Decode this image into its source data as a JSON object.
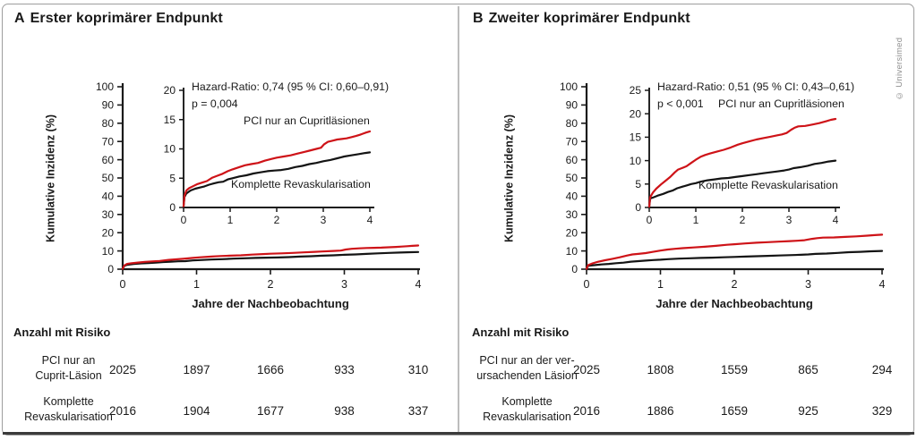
{
  "figure": {
    "watermark": "© Universimed",
    "colors": {
      "red": "#ce1318",
      "black": "#141414",
      "axis": "#1a1a1a",
      "frame": "#9e9e9e",
      "bottom_rule": "#3b3b3b"
    }
  },
  "chart_data": [
    {
      "type": "line",
      "panel_letter": "A",
      "title": "Erster koprimärer Endpunkt",
      "xlabel": "Jahre der Nachbeobachtung",
      "ylabel": "Kumulative Inzidenz (%)",
      "ylim": [
        0,
        100
      ],
      "y_ticks": [
        0,
        10,
        20,
        30,
        40,
        50,
        60,
        70,
        80,
        90,
        100
      ],
      "x_ticks": [
        0,
        1,
        2,
        3,
        4
      ],
      "grid": false,
      "inset": {
        "ylim": [
          0,
          20
        ],
        "y_ticks": [
          0,
          5,
          10,
          15,
          20
        ],
        "x_ticks": [
          0,
          1,
          2,
          3,
          4
        ],
        "hazard_text": "Hazard-Ratio: 0,74 (95 % CI: 0,60–0,91)",
        "p_text": "p = 0,004"
      },
      "series": [
        {
          "name": "PCI nur an Cupritläsionen",
          "color": "#ce1318",
          "points": [
            [
              0,
              0.2
            ],
            [
              0.02,
              2.0
            ],
            [
              0.06,
              2.9
            ],
            [
              0.12,
              3.3
            ],
            [
              0.22,
              3.7
            ],
            [
              0.3,
              4.0
            ],
            [
              0.42,
              4.3
            ],
            [
              0.5,
              4.5
            ],
            [
              0.62,
              5.1
            ],
            [
              0.72,
              5.4
            ],
            [
              0.82,
              5.7
            ],
            [
              0.95,
              6.2
            ],
            [
              1.05,
              6.5
            ],
            [
              1.2,
              6.9
            ],
            [
              1.32,
              7.2
            ],
            [
              1.45,
              7.4
            ],
            [
              1.6,
              7.6
            ],
            [
              1.75,
              8.0
            ],
            [
              1.9,
              8.3
            ],
            [
              2.0,
              8.5
            ],
            [
              2.15,
              8.7
            ],
            [
              2.3,
              8.9
            ],
            [
              2.45,
              9.2
            ],
            [
              2.6,
              9.5
            ],
            [
              2.7,
              9.7
            ],
            [
              2.85,
              10.0
            ],
            [
              2.95,
              10.2
            ],
            [
              3.02,
              10.8
            ],
            [
              3.1,
              11.2
            ],
            [
              3.2,
              11.4
            ],
            [
              3.3,
              11.6
            ],
            [
              3.4,
              11.7
            ],
            [
              3.5,
              11.8
            ],
            [
              3.6,
              12.0
            ],
            [
              3.7,
              12.2
            ],
            [
              3.78,
              12.4
            ],
            [
              3.85,
              12.6
            ],
            [
              3.92,
              12.8
            ],
            [
              4,
              13.0
            ]
          ]
        },
        {
          "name": "Komplette Revaskularisation",
          "color": "#141414",
          "points": [
            [
              0,
              0.2
            ],
            [
              0.02,
              1.8
            ],
            [
              0.06,
              2.4
            ],
            [
              0.15,
              2.9
            ],
            [
              0.25,
              3.2
            ],
            [
              0.35,
              3.4
            ],
            [
              0.45,
              3.6
            ],
            [
              0.55,
              3.9
            ],
            [
              0.65,
              4.1
            ],
            [
              0.75,
              4.3
            ],
            [
              0.85,
              4.4
            ],
            [
              0.95,
              4.8
            ],
            [
              1.05,
              5.0
            ],
            [
              1.2,
              5.3
            ],
            [
              1.35,
              5.5
            ],
            [
              1.5,
              5.8
            ],
            [
              1.65,
              6.0
            ],
            [
              1.8,
              6.2
            ],
            [
              1.95,
              6.3
            ],
            [
              2.1,
              6.4
            ],
            [
              2.25,
              6.6
            ],
            [
              2.4,
              6.9
            ],
            [
              2.55,
              7.1
            ],
            [
              2.7,
              7.4
            ],
            [
              2.85,
              7.6
            ],
            [
              3.0,
              7.9
            ],
            [
              3.15,
              8.1
            ],
            [
              3.3,
              8.4
            ],
            [
              3.45,
              8.7
            ],
            [
              3.6,
              8.9
            ],
            [
              3.75,
              9.1
            ],
            [
              3.9,
              9.3
            ],
            [
              4,
              9.4
            ]
          ]
        }
      ],
      "number_at_risk": {
        "header": "Anzahl mit Risiko",
        "rows": [
          {
            "label": "PCI nur an\nCuprit-Läsion",
            "values": [
              "2025",
              "1897",
              "1666",
              "933",
              "310"
            ]
          },
          {
            "label": "Komplette\nRevaskularisation",
            "values": [
              "2016",
              "1904",
              "1677",
              "938",
              "337"
            ]
          }
        ]
      }
    },
    {
      "type": "line",
      "panel_letter": "B",
      "title": "Zweiter koprimärer Endpunkt",
      "xlabel": "Jahre der Nachbeobachtung",
      "ylabel": "Kumulative Inzidenz (%)",
      "ylim": [
        0,
        100
      ],
      "y_ticks": [
        0,
        10,
        20,
        30,
        40,
        50,
        60,
        70,
        80,
        90,
        100
      ],
      "x_ticks": [
        0,
        1,
        2,
        3,
        4
      ],
      "grid": false,
      "inset": {
        "ylim": [
          0,
          25
        ],
        "y_ticks": [
          0,
          5,
          10,
          15,
          20,
          25
        ],
        "x_ticks": [
          0,
          1,
          2,
          3,
          4
        ],
        "hazard_text": "Hazard-Ratio: 0,51 (95 % CI: 0,43–0,61)",
        "p_text": "p < 0,001"
      },
      "series": [
        {
          "name": "PCI nur an Cupritläsionen",
          "color": "#ce1318",
          "points": [
            [
              0,
              0.2
            ],
            [
              0.02,
              2.2
            ],
            [
              0.08,
              3.2
            ],
            [
              0.15,
              4.0
            ],
            [
              0.25,
              4.9
            ],
            [
              0.35,
              5.7
            ],
            [
              0.45,
              6.5
            ],
            [
              0.55,
              7.5
            ],
            [
              0.62,
              8.1
            ],
            [
              0.7,
              8.4
            ],
            [
              0.8,
              8.8
            ],
            [
              0.9,
              9.5
            ],
            [
              1.0,
              10.2
            ],
            [
              1.1,
              10.8
            ],
            [
              1.2,
              11.2
            ],
            [
              1.3,
              11.5
            ],
            [
              1.45,
              11.9
            ],
            [
              1.6,
              12.3
            ],
            [
              1.75,
              12.8
            ],
            [
              1.9,
              13.4
            ],
            [
              2.0,
              13.7
            ],
            [
              2.15,
              14.1
            ],
            [
              2.3,
              14.5
            ],
            [
              2.45,
              14.8
            ],
            [
              2.6,
              15.1
            ],
            [
              2.75,
              15.4
            ],
            [
              2.85,
              15.6
            ],
            [
              2.95,
              15.9
            ],
            [
              3.05,
              16.6
            ],
            [
              3.12,
              17.0
            ],
            [
              3.2,
              17.3
            ],
            [
              3.35,
              17.4
            ],
            [
              3.5,
              17.7
            ],
            [
              3.65,
              18.0
            ],
            [
              3.8,
              18.4
            ],
            [
              3.9,
              18.7
            ],
            [
              4,
              18.9
            ]
          ]
        },
        {
          "name": "Komplette Revaskularisation",
          "color": "#141414",
          "points": [
            [
              0,
              0.2
            ],
            [
              0.02,
              1.9
            ],
            [
              0.1,
              2.2
            ],
            [
              0.2,
              2.6
            ],
            [
              0.3,
              2.9
            ],
            [
              0.4,
              3.3
            ],
            [
              0.5,
              3.6
            ],
            [
              0.6,
              4.1
            ],
            [
              0.7,
              4.4
            ],
            [
              0.8,
              4.7
            ],
            [
              0.9,
              5.0
            ],
            [
              1.0,
              5.2
            ],
            [
              1.1,
              5.5
            ],
            [
              1.25,
              5.8
            ],
            [
              1.4,
              6.0
            ],
            [
              1.55,
              6.2
            ],
            [
              1.7,
              6.3
            ],
            [
              1.85,
              6.5
            ],
            [
              2.0,
              6.7
            ],
            [
              2.15,
              6.9
            ],
            [
              2.3,
              7.1
            ],
            [
              2.45,
              7.3
            ],
            [
              2.6,
              7.5
            ],
            [
              2.75,
              7.7
            ],
            [
              2.9,
              7.9
            ],
            [
              3.0,
              8.1
            ],
            [
              3.1,
              8.4
            ],
            [
              3.25,
              8.6
            ],
            [
              3.4,
              8.9
            ],
            [
              3.55,
              9.3
            ],
            [
              3.7,
              9.5
            ],
            [
              3.85,
              9.8
            ],
            [
              4,
              10.0
            ]
          ]
        }
      ],
      "number_at_risk": {
        "header": "Anzahl mit Risiko",
        "rows": [
          {
            "label": "PCI nur an der ver-\nursachenden Läsion",
            "values": [
              "2025",
              "1808",
              "1559",
              "865",
              "294"
            ]
          },
          {
            "label": "Komplette\nRevaskularisation",
            "values": [
              "2016",
              "1886",
              "1659",
              "925",
              "329"
            ]
          }
        ]
      }
    }
  ]
}
